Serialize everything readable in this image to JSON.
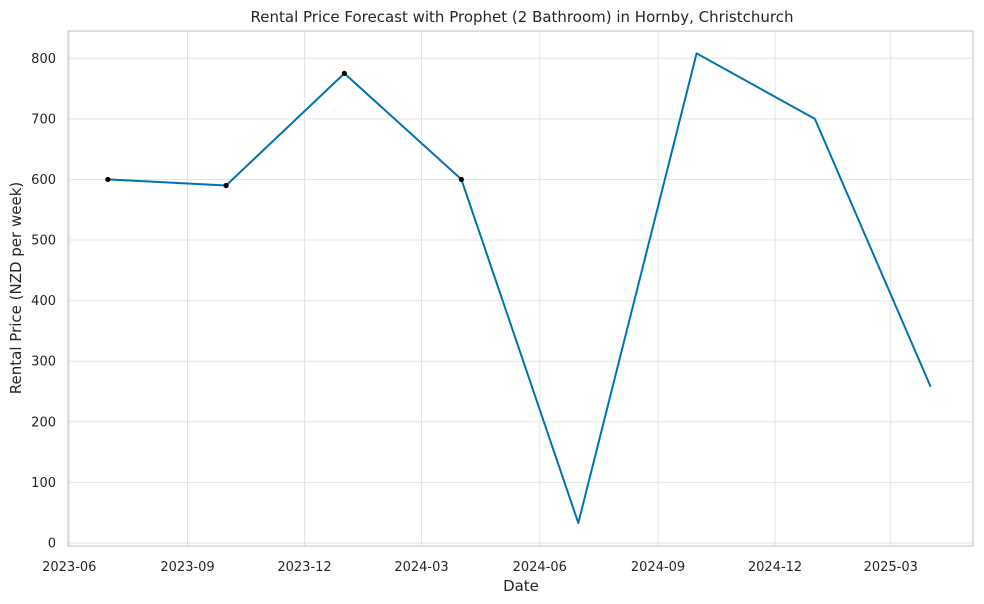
{
  "chart_data": {
    "type": "line",
    "title": "Rental Price Forecast with Prophet (2 Bathroom) in Hornby, Christchurch",
    "xlabel": "Date",
    "ylabel": "Rental Price (NZD per week)",
    "x_ticks": [
      "2023-06",
      "2023-09",
      "2023-12",
      "2024-03",
      "2024-06",
      "2024-09",
      "2024-12",
      "2025-03"
    ],
    "y_ticks": [
      0,
      100,
      200,
      300,
      400,
      500,
      600,
      700,
      800
    ],
    "xlim": [
      "2023-05-31",
      "2025-05-04"
    ],
    "ylim": [
      -5,
      845
    ],
    "grid": true,
    "colors": {
      "forecast_line": "#0072B2",
      "observed_points": "#000000"
    },
    "series": [
      {
        "x": [
          "2023-07-01",
          "2023-10-01",
          "2024-01-01",
          "2024-04-01",
          "2024-07-01",
          "2024-10-01",
          "2025-01-01",
          "2025-04-01"
        ],
        "values": [
          600,
          590,
          775,
          600,
          33,
          808,
          700,
          258
        ]
      }
    ],
    "observed": {
      "x": [
        "2023-07-01",
        "2023-10-01",
        "2024-01-01",
        "2024-04-01"
      ],
      "values": [
        600,
        590,
        775,
        600
      ]
    }
  }
}
